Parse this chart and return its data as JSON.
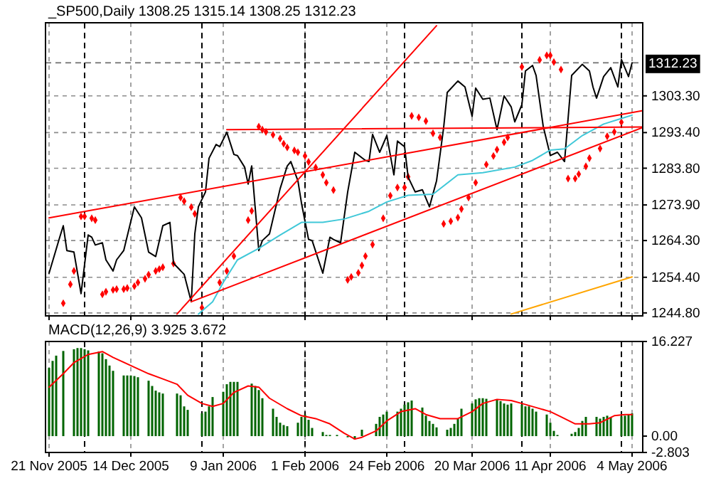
{
  "chart_data": [
    {
      "type": "line",
      "title": "_SP500,Daily 1308.25 1315.14 1308.25 1312.23",
      "xlim": [
        "2005-11-20",
        "2006-05-07"
      ],
      "ylim": [
        1244,
        1323
      ],
      "xticks": [
        {
          "value": "2005-11-21",
          "label": null
        },
        {
          "value": "2005-12-14",
          "label": null
        },
        {
          "value": "2006-01-09",
          "label": null
        },
        {
          "value": "2006-02-01",
          "label": null
        },
        {
          "value": "2006-02-24",
          "label": null
        },
        {
          "value": "2006-03-20",
          "label": null
        },
        {
          "value": "2006-04-11",
          "label": null
        },
        {
          "value": "2006-05-04",
          "label": null
        }
      ],
      "yticks": [
        {
          "value": 1244.8,
          "label": "1244.80"
        },
        {
          "value": 1254.4,
          "label": "1254.40"
        },
        {
          "value": 1264.3,
          "label": "1264.30"
        },
        {
          "value": 1273.9,
          "label": "1273.90"
        },
        {
          "value": 1283.8,
          "label": "1283.80"
        },
        {
          "value": 1293.4,
          "label": "1293.40"
        },
        {
          "value": 1303.3,
          "label": "1303.30"
        }
      ],
      "tick_labels": "y",
      "grid": true,
      "ref_lines": [
        {
          "axis": "y",
          "value": 1312.23,
          "label": "1312.23",
          "color": "#808080",
          "line_style": "dashed"
        },
        {
          "axis": "x",
          "value": "2005-12-01",
          "color": "#000000",
          "line_style": "dashed"
        },
        {
          "axis": "x",
          "value": "2006-01-03",
          "color": "#000000",
          "line_style": "dashed"
        },
        {
          "axis": "x",
          "value": "2006-02-01",
          "color": "#000000",
          "line_style": "dashed"
        },
        {
          "axis": "x",
          "value": "2006-03-01",
          "color": "#000000",
          "line_style": "dashed"
        },
        {
          "axis": "x",
          "value": "2006-04-03",
          "color": "#000000",
          "line_style": "dashed"
        },
        {
          "axis": "x",
          "value": "2006-05-01",
          "color": "#000000",
          "line_style": "dashed"
        }
      ],
      "series": [
        {
          "type": "scatter",
          "color": "#ff0000",
          "marker": "diamond",
          "x": [
            "2005-11-25",
            "2005-11-27",
            "2005-11-28",
            "2005-11-30",
            "2005-12-01",
            "2005-12-03",
            "2005-12-04",
            "2005-12-06",
            "2005-12-07",
            "2005-12-09",
            "2005-12-10",
            "2005-12-12",
            "2005-12-13",
            "2005-12-15",
            "2005-12-16",
            "2005-12-18",
            "2005-12-19",
            "2005-12-21",
            "2005-12-22",
            "2005-12-23",
            "2005-12-26",
            "2005-12-28",
            "2005-12-29",
            "2005-12-31",
            "2006-01-01",
            "2006-01-03",
            "2006-01-08",
            "2006-01-10",
            "2006-01-12",
            "2006-01-16",
            "2006-01-17",
            "2006-01-19",
            "2006-01-20",
            "2006-01-21",
            "2006-01-23",
            "2006-01-25",
            "2006-01-26",
            "2006-01-27",
            "2006-01-29",
            "2006-01-30",
            "2006-02-01",
            "2006-02-02",
            "2006-02-04",
            "2006-02-06",
            "2006-02-07",
            "2006-02-09",
            "2006-02-13",
            "2006-02-14",
            "2006-02-16",
            "2006-02-17",
            "2006-02-18",
            "2006-02-20",
            "2006-02-23",
            "2006-02-25",
            "2006-02-27",
            "2006-03-01",
            "2006-03-02",
            "2006-03-03",
            "2006-03-05",
            "2006-03-07",
            "2006-03-09",
            "2006-03-11",
            "2006-03-12",
            "2006-03-14",
            "2006-03-16",
            "2006-03-17",
            "2006-03-19",
            "2006-03-21",
            "2006-03-24",
            "2006-03-26",
            "2006-03-27",
            "2006-03-29",
            "2006-03-30",
            "2006-04-03",
            "2006-04-08",
            "2006-04-10",
            "2006-04-11",
            "2006-04-12",
            "2006-04-14",
            "2006-04-16",
            "2006-04-18",
            "2006-04-19",
            "2006-04-21",
            "2006-04-22",
            "2006-04-25",
            "2006-04-27",
            "2006-04-29",
            "2006-05-01"
          ],
          "values": [
            1247.4,
            1252.5,
            1256.1,
            1270.8,
            1270.8,
            1270.3,
            1269.8,
            1249.8,
            1250.5,
            1251.0,
            1251.2,
            1251.2,
            1251.5,
            1252.0,
            1253.0,
            1254.0,
            1255.1,
            1256.1,
            1256.6,
            1257.1,
            1258.1,
            1275.9,
            1274.9,
            1273.3,
            1271.5,
            1246.2,
            1253.0,
            1256.1,
            1260.1,
            1269.8,
            1272.3,
            1295.0,
            1294.2,
            1293.6,
            1292.8,
            1291.8,
            1290.4,
            1289.4,
            1288.6,
            1288.1,
            1287.1,
            1285.5,
            1284.0,
            1282.0,
            1279.9,
            1277.9,
            1253.7,
            1254.5,
            1255.6,
            1257.6,
            1260.1,
            1263.2,
            1270.3,
            1276.4,
            1278.6,
            1278.6,
            1281.5,
            1297.9,
            1297.5,
            1296.5,
            1293.2,
            1292.1,
            1268.8,
            1269.5,
            1270.5,
            1272.8,
            1275.9,
            1279.9,
            1284.8,
            1287.1,
            1288.8,
            1290.8,
            1292.1,
            1311.1,
            1313.0,
            1314.2,
            1314.2,
            1312.4,
            1310.4,
            1281.0,
            1281.0,
            1282.2,
            1284.3,
            1286.5,
            1289.1,
            1292.4,
            1293.6,
            1296.2
          ]
        },
        {
          "color": "#000000",
          "x": [
            "2005-11-21",
            "2005-11-24",
            "2005-11-25",
            "2005-11-26",
            "2005-11-28",
            "2005-11-30",
            "2005-12-02",
            "2005-12-03",
            "2005-12-04",
            "2005-12-06",
            "2005-12-07",
            "2005-12-09",
            "2005-12-10",
            "2005-12-12",
            "2005-12-15",
            "2005-12-17",
            "2005-12-19",
            "2005-12-21",
            "2005-12-23",
            "2005-12-25",
            "2005-12-26",
            "2005-12-29",
            "2005-12-31",
            "2006-01-01",
            "2006-01-02",
            "2006-01-04",
            "2006-01-05",
            "2006-01-07",
            "2006-01-08",
            "2006-01-10",
            "2006-01-12",
            "2006-01-13",
            "2006-01-15",
            "2006-01-16",
            "2006-01-17",
            "2006-01-19",
            "2006-01-20",
            "2006-01-22",
            "2006-01-25",
            "2006-01-27",
            "2006-01-28",
            "2006-01-30",
            "2006-01-31",
            "2006-02-02",
            "2006-02-03",
            "2006-02-06",
            "2006-02-08",
            "2006-02-09",
            "2006-02-11",
            "2006-02-13",
            "2006-02-15",
            "2006-02-18",
            "2006-02-19",
            "2006-02-20",
            "2006-02-22",
            "2006-02-24",
            "2006-02-26",
            "2006-02-27",
            "2006-03-01",
            "2006-03-02",
            "2006-03-04",
            "2006-03-06",
            "2006-03-08",
            "2006-03-10",
            "2006-03-12",
            "2006-03-13",
            "2006-03-16",
            "2006-03-18",
            "2006-03-20",
            "2006-03-21",
            "2006-03-23",
            "2006-03-25",
            "2006-03-27",
            "2006-03-29",
            "2006-03-31",
            "2006-04-01",
            "2006-04-03",
            "2006-04-04",
            "2006-04-06",
            "2006-04-07",
            "2006-04-09",
            "2006-04-11",
            "2006-04-13",
            "2006-04-15",
            "2006-04-17",
            "2006-04-20",
            "2006-04-22",
            "2006-04-23",
            "2006-04-24",
            "2006-04-26",
            "2006-04-28",
            "2006-04-30",
            "2006-05-01",
            "2006-05-03",
            "2006-05-04"
          ],
          "values": [
            1255.5,
            1265.2,
            1268.3,
            1261.6,
            1261.2,
            1250.0,
            1265.8,
            1265.2,
            1263.1,
            1263.7,
            1259.1,
            1256.1,
            1259.1,
            1261.6,
            1273.4,
            1270.4,
            1261.2,
            1260.0,
            1268.3,
            1269.2,
            1258.2,
            1255.2,
            1247.8,
            1266.1,
            1273.4,
            1277.4,
            1286.5,
            1290.2,
            1289.6,
            1293.5,
            1287.5,
            1287.2,
            1284.1,
            1279.5,
            1284.4,
            1261.6,
            1264.3,
            1266.1,
            1278.3,
            1284.4,
            1285.6,
            1280.4,
            1274.4,
            1264.6,
            1264.3,
            1255.5,
            1265.2,
            1264.6,
            1263.7,
            1277.4,
            1288.1,
            1285.9,
            1285.6,
            1292.9,
            1288.1,
            1292.6,
            1282.0,
            1291.1,
            1289.6,
            1281.4,
            1277.4,
            1278.0,
            1273.4,
            1280.4,
            1294.8,
            1304.2,
            1307.3,
            1305.7,
            1297.8,
            1305.4,
            1302.4,
            1302.7,
            1294.2,
            1303.3,
            1300.3,
            1296.3,
            1300.9,
            1310.0,
            1311.5,
            1308.8,
            1295.1,
            1287.2,
            1288.1,
            1285.6,
            1308.8,
            1311.8,
            1310.0,
            1305.7,
            1302.7,
            1308.5,
            1310.9,
            1305.7,
            1313.1,
            1308.5,
            1312.2
          ]
        },
        {
          "color": "#40c8d8",
          "x": [
            "2006-01-02",
            "2006-01-06",
            "2006-01-09",
            "2006-01-13",
            "2006-01-19",
            "2006-01-25",
            "2006-01-31",
            "2006-02-06",
            "2006-02-12",
            "2006-02-19",
            "2006-02-24",
            "2006-03-02",
            "2006-03-09",
            "2006-03-16",
            "2006-03-23",
            "2006-04-01",
            "2006-04-06",
            "2006-04-11",
            "2006-04-15",
            "2006-04-20",
            "2006-04-26",
            "2006-05-01",
            "2006-05-04"
          ],
          "values": [
            1244.5,
            1247.8,
            1253.0,
            1259.1,
            1262.2,
            1265.8,
            1269.2,
            1269.2,
            1270.1,
            1272.2,
            1274.7,
            1276.5,
            1276.8,
            1282.0,
            1282.6,
            1284.1,
            1285.9,
            1288.7,
            1289.0,
            1292.6,
            1295.7,
            1297.2,
            1298.1
          ]
        },
        {
          "color": "#ffa500",
          "x": [
            "2006-03-31",
            "2006-05-04"
          ],
          "values": [
            1244.5,
            1254.5
          ]
        },
        {
          "color": "#ff0000",
          "x": [
            "2005-12-27",
            "2006-03-10"
          ],
          "values": [
            1244.5,
            1322.2
          ]
        },
        {
          "color": "#ff0000",
          "x": [
            "2006-01-10",
            "2006-05-07"
          ],
          "values": [
            1294.2,
            1294.9
          ]
        },
        {
          "color": "#ff0000",
          "x": [
            "2005-11-21",
            "2006-05-07"
          ],
          "values": [
            1270.4,
            1299.3
          ]
        },
        {
          "color": "#ff0000",
          "x": [
            "2005-12-31",
            "2006-05-07"
          ],
          "values": [
            1247.8,
            1294.8
          ]
        }
      ]
    },
    {
      "type": "bar",
      "title": "MACD(12,26,9) 3.925 3.672",
      "xlim": [
        "2005-11-20",
        "2006-05-07"
      ],
      "ylim": [
        -2.803,
        16.227
      ],
      "xticks": [
        {
          "value": "2005-11-21",
          "label": "21 Nov 2005"
        },
        {
          "value": "2005-12-14",
          "label": "14 Dec 2005"
        },
        {
          "value": "2006-01-09",
          "label": "9 Jan 2006"
        },
        {
          "value": "2006-02-01",
          "label": "1 Feb 2006"
        },
        {
          "value": "2006-02-24",
          "label": "24 Feb 2006"
        },
        {
          "value": "2006-03-20",
          "label": "20 Mar 2006"
        },
        {
          "value": "2006-04-11",
          "label": "11 Apr 2006"
        },
        {
          "value": "2006-05-04",
          "label": "4 May 2006"
        }
      ],
      "yticks": [
        -2.803,
        {
          "value": 0,
          "label": "0.00"
        },
        16.227
      ],
      "grid": "x",
      "ref_lines": [
        {
          "axis": "x",
          "value": "2005-12-01",
          "color": "#000000",
          "line_style": "dashed"
        },
        {
          "axis": "x",
          "value": "2006-01-03",
          "color": "#000000",
          "line_style": "dashed"
        },
        {
          "axis": "x",
          "value": "2006-02-01",
          "color": "#000000",
          "line_style": "dashed"
        },
        {
          "axis": "x",
          "value": "2006-03-01",
          "color": "#000000",
          "line_style": "dashed"
        },
        {
          "axis": "x",
          "value": "2006-04-03",
          "color": "#000000",
          "line_style": "dashed"
        },
        {
          "axis": "x",
          "value": "2006-05-01",
          "color": "#000000",
          "line_style": "dashed"
        }
      ],
      "series": [
        {
          "color": "#006400",
          "x": [
            "2005-11-21",
            "2005-11-22",
            "2005-11-23",
            "2005-11-25",
            "2005-11-28",
            "2005-11-29",
            "2005-11-30",
            "2005-12-01",
            "2005-12-02",
            "2005-12-05",
            "2005-12-06",
            "2005-12-07",
            "2005-12-08",
            "2005-12-09",
            "2005-12-12",
            "2005-12-13",
            "2005-12-14",
            "2005-12-15",
            "2005-12-16",
            "2005-12-19",
            "2005-12-20",
            "2005-12-21",
            "2005-12-22",
            "2005-12-23",
            "2005-12-27",
            "2005-12-28",
            "2005-12-29",
            "2005-12-30",
            "2006-01-03",
            "2006-01-04",
            "2006-01-05",
            "2006-01-06",
            "2006-01-09",
            "2006-01-10",
            "2006-01-11",
            "2006-01-12",
            "2006-01-13",
            "2006-01-17",
            "2006-01-18",
            "2006-01-19",
            "2006-01-20",
            "2006-01-23",
            "2006-01-24",
            "2006-01-25",
            "2006-01-26",
            "2006-01-27",
            "2006-01-30",
            "2006-01-31",
            "2006-02-01",
            "2006-02-02",
            "2006-02-03",
            "2006-02-06",
            "2006-02-07",
            "2006-02-08",
            "2006-02-09",
            "2006-02-10",
            "2006-02-13",
            "2006-02-14",
            "2006-02-15",
            "2006-02-16",
            "2006-02-17",
            "2006-02-21",
            "2006-02-22",
            "2006-02-23",
            "2006-02-24",
            "2006-02-27",
            "2006-02-28",
            "2006-03-01",
            "2006-03-02",
            "2006-03-03",
            "2006-03-06",
            "2006-03-07",
            "2006-03-08",
            "2006-03-09",
            "2006-03-10",
            "2006-03-13",
            "2006-03-14",
            "2006-03-15",
            "2006-03-16",
            "2006-03-17",
            "2006-03-20",
            "2006-03-21",
            "2006-03-22",
            "2006-03-23",
            "2006-03-24",
            "2006-03-27",
            "2006-03-28",
            "2006-03-29",
            "2006-03-30",
            "2006-03-31",
            "2006-04-03",
            "2006-04-04",
            "2006-04-05",
            "2006-04-06",
            "2006-04-07",
            "2006-04-10",
            "2006-04-11",
            "2006-04-12",
            "2006-04-13",
            "2006-04-17",
            "2006-04-18",
            "2006-04-19",
            "2006-04-20",
            "2006-04-21",
            "2006-04-24",
            "2006-04-25",
            "2006-04-26",
            "2006-04-27",
            "2006-04-28",
            "2006-05-01",
            "2006-05-02",
            "2006-05-03",
            "2006-05-04"
          ],
          "values": [
            11.7,
            12.9,
            13.8,
            14.6,
            14.9,
            15.1,
            15.1,
            14.9,
            14.7,
            14.5,
            14.2,
            13.2,
            12.1,
            11.2,
            10.4,
            10.4,
            10.4,
            10.3,
            10.1,
            9.5,
            8.6,
            7.8,
            7.5,
            7.3,
            7.3,
            7.0,
            5.1,
            4.5,
            3.9,
            4.2,
            5.1,
            6.7,
            7.6,
            8.9,
            9.3,
            9.3,
            9.3,
            9.0,
            8.6,
            7.9,
            6.5,
            4.7,
            3.3,
            2.3,
            1.9,
            1.7,
            2.3,
            3.3,
            3.7,
            2.8,
            1.4,
            0.7,
            0.2,
            0.2,
            0,
            0.2,
            -0.2,
            null,
            -0.6,
            0,
            1.1,
            2.1,
            3.3,
            3.7,
            4.2,
            4.2,
            4.7,
            5.4,
            5.8,
            6.1,
            4.9,
            3.5,
            2.6,
            2.1,
            1.5,
            1.1,
            1.4,
            2.1,
            3.0,
            4.7,
            5.6,
            6.3,
            6.5,
            6.5,
            6.4,
            6.3,
            6.0,
            5.6,
            5.4,
            5.6,
            5.4,
            5.1,
            5.1,
            4.7,
            4.2,
            3.7,
            2.3,
            0.9,
            0.2,
            0.4,
            0.7,
            1.4,
            2.6,
            3.3,
            3.3,
            3.0,
            3.3,
            3.5,
            3.3,
            3.4,
            3.5,
            3.7,
            3.9
          ]
        },
        {
          "type": "line",
          "color": "#ff0000",
          "x": [
            "2005-11-21",
            "2005-11-25",
            "2005-11-28",
            "2005-12-02",
            "2005-12-06",
            "2005-12-09",
            "2005-12-14",
            "2005-12-19",
            "2005-12-23",
            "2005-12-27",
            "2005-12-30",
            "2006-01-03",
            "2006-01-06",
            "2006-01-09",
            "2006-01-12",
            "2006-01-16",
            "2006-01-19",
            "2006-01-22",
            "2006-01-27",
            "2006-01-31",
            "2006-02-04",
            "2006-02-08",
            "2006-02-12",
            "2006-02-15",
            "2006-02-17",
            "2006-02-21",
            "2006-02-24",
            "2006-02-28",
            "2006-03-04",
            "2006-03-07",
            "2006-03-11",
            "2006-03-16",
            "2006-03-20",
            "2006-03-23",
            "2006-03-27",
            "2006-03-31",
            "2006-04-03",
            "2006-04-07",
            "2006-04-11",
            "2006-04-14",
            "2006-04-18",
            "2006-04-22",
            "2006-04-25",
            "2006-04-29",
            "2006-05-02",
            "2006-05-04"
          ],
          "values": [
            8.4,
            10.7,
            12.6,
            14.0,
            14.5,
            13.5,
            12.1,
            10.7,
            9.8,
            8.9,
            7.0,
            5.6,
            5.1,
            5.6,
            7.5,
            8.6,
            8.4,
            6.5,
            4.7,
            3.5,
            3.0,
            2.1,
            0.5,
            -0.5,
            -0.2,
            0.9,
            2.6,
            4.2,
            4.7,
            3.7,
            3.0,
            3.0,
            4.2,
            5.6,
            6.3,
            6.1,
            5.6,
            4.9,
            4.2,
            3.3,
            2.1,
            2.1,
            2.3,
            3.5,
            3.7,
            3.7
          ]
        }
      ]
    }
  ]
}
